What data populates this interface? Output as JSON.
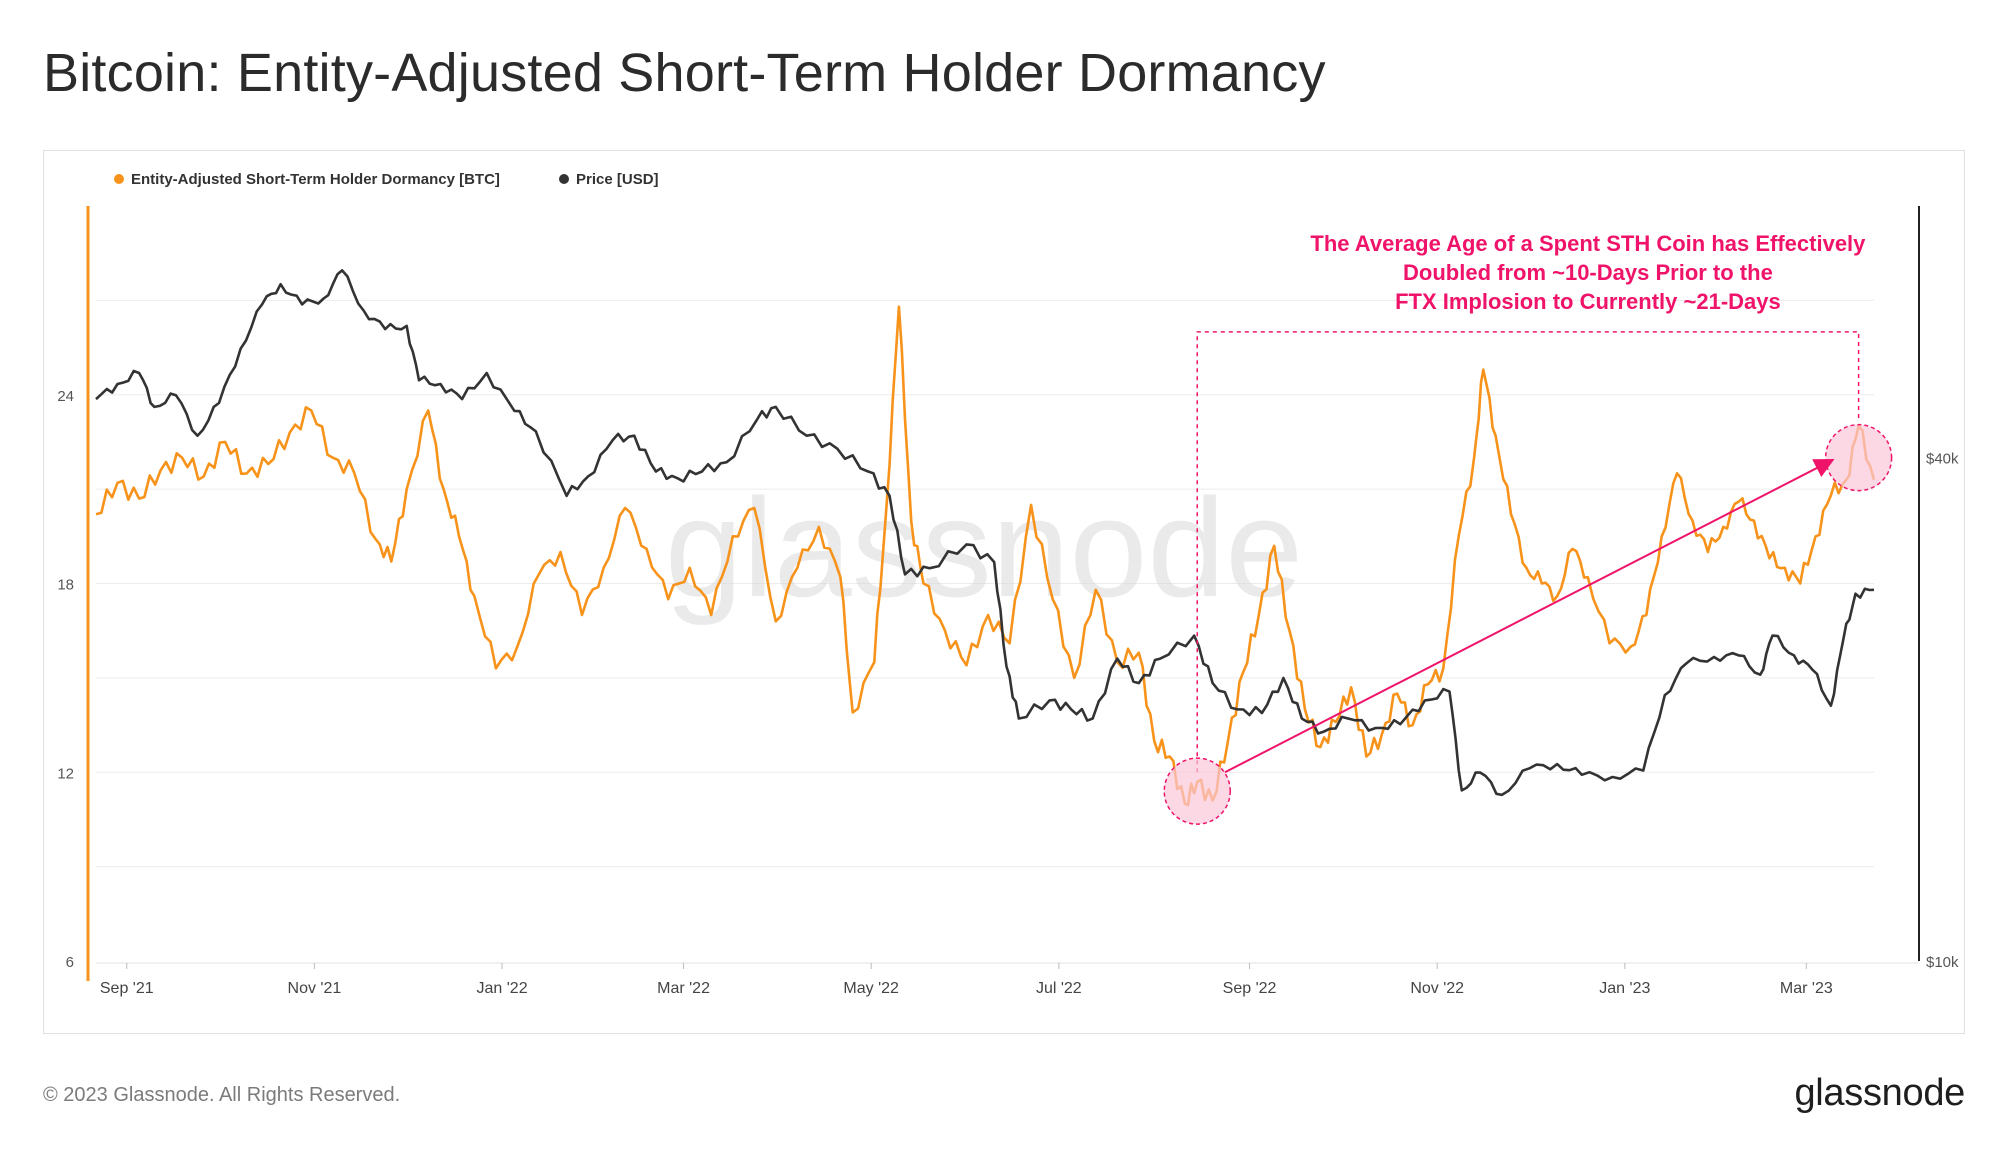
{
  "title": "Bitcoin: Entity-Adjusted Short-Term Holder Dormancy",
  "footer": {
    "copyright": "© 2023 Glassnode. All Rights Reserved.",
    "logo": "glassnode"
  },
  "watermark": "glassnode",
  "colors": {
    "dormancy": "#f7931a",
    "price": "#333333",
    "annotation": "#f0136a",
    "highlight_fill": "#fbc6d8",
    "grid": "#ececec"
  },
  "chart_data": {
    "type": "line",
    "title": "Bitcoin: Entity-Adjusted Short-Term Holder Dormancy",
    "grid": true,
    "legend_position": "top-left",
    "x_range": [
      "2021-08-22",
      "2023-03-23"
    ],
    "x_ticks": [
      {
        "date": "2021-09-01",
        "label": "Sep '21"
      },
      {
        "date": "2021-11-01",
        "label": "Nov '21"
      },
      {
        "date": "2022-01-01",
        "label": "Jan '22"
      },
      {
        "date": "2022-03-01",
        "label": "Mar '22"
      },
      {
        "date": "2022-05-01",
        "label": "May '22"
      },
      {
        "date": "2022-07-01",
        "label": "Jul '22"
      },
      {
        "date": "2022-09-01",
        "label": "Sep '22"
      },
      {
        "date": "2022-11-01",
        "label": "Nov '22"
      },
      {
        "date": "2023-01-01",
        "label": "Jan '23"
      },
      {
        "date": "2023-03-01",
        "label": "Mar '23"
      }
    ],
    "y_left": {
      "range": [
        6,
        30
      ],
      "ticks": [
        {
          "value": 6,
          "label": "6"
        },
        {
          "value": 12,
          "label": "12"
        },
        {
          "value": 18,
          "label": "18"
        },
        {
          "value": 24,
          "label": "24"
        }
      ]
    },
    "y_right": {
      "scale": "log",
      "range": [
        10000,
        80000
      ],
      "ticks": [
        {
          "value": 10000,
          "label": "$10k"
        },
        {
          "value": 40000,
          "label": "$40k"
        }
      ]
    },
    "series": [
      {
        "name": "Entity-Adjusted Short-Term Holder Dormancy [BTC]",
        "axis": "left",
        "color": "#f7931a",
        "points": [
          [
            "2021-08-22",
            20.2
          ],
          [
            "2021-08-29",
            21.2
          ],
          [
            "2021-09-05",
            20.7
          ],
          [
            "2021-09-12",
            21.6
          ],
          [
            "2021-09-19",
            22.0
          ],
          [
            "2021-09-26",
            21.4
          ],
          [
            "2021-10-03",
            22.5
          ],
          [
            "2021-10-10",
            21.5
          ],
          [
            "2021-10-17",
            21.8
          ],
          [
            "2021-10-24",
            22.8
          ],
          [
            "2021-10-31",
            23.5
          ],
          [
            "2021-11-07",
            22.0
          ],
          [
            "2021-11-14",
            21.5
          ],
          [
            "2021-11-21",
            19.4
          ],
          [
            "2021-11-26",
            18.7
          ],
          [
            "2021-12-01",
            21.0
          ],
          [
            "2021-12-08",
            23.5
          ],
          [
            "2021-12-13",
            21.0
          ],
          [
            "2021-12-18",
            19.5
          ],
          [
            "2021-12-23",
            17.6
          ],
          [
            "2021-12-30",
            15.3
          ],
          [
            "2022-01-06",
            16.0
          ],
          [
            "2022-01-13",
            18.3
          ],
          [
            "2022-01-20",
            19.0
          ],
          [
            "2022-01-27",
            17.0
          ],
          [
            "2022-02-03",
            18.5
          ],
          [
            "2022-02-10",
            20.4
          ],
          [
            "2022-02-17",
            19.1
          ],
          [
            "2022-02-24",
            17.5
          ],
          [
            "2022-03-03",
            18.5
          ],
          [
            "2022-03-10",
            17.0
          ],
          [
            "2022-03-17",
            19.5
          ],
          [
            "2022-03-24",
            20.4
          ],
          [
            "2022-03-31",
            16.8
          ],
          [
            "2022-04-07",
            18.5
          ],
          [
            "2022-04-14",
            19.8
          ],
          [
            "2022-04-21",
            18.2
          ],
          [
            "2022-04-25",
            13.9
          ],
          [
            "2022-05-02",
            15.5
          ],
          [
            "2022-05-06",
            20.5
          ],
          [
            "2022-05-10",
            26.8
          ],
          [
            "2022-05-14",
            20.0
          ],
          [
            "2022-05-18",
            18.0
          ],
          [
            "2022-05-25",
            16.5
          ],
          [
            "2022-06-01",
            15.4
          ],
          [
            "2022-06-08",
            17.0
          ],
          [
            "2022-06-15",
            16.1
          ],
          [
            "2022-06-22",
            20.5
          ],
          [
            "2022-06-29",
            17.5
          ],
          [
            "2022-07-06",
            15.0
          ],
          [
            "2022-07-13",
            17.8
          ],
          [
            "2022-07-20",
            15.5
          ],
          [
            "2022-07-27",
            15.8
          ],
          [
            "2022-08-01",
            13.0
          ],
          [
            "2022-08-06",
            12.5
          ],
          [
            "2022-08-11",
            11.0
          ],
          [
            "2022-08-15",
            11.7
          ],
          [
            "2022-08-20",
            11.1
          ],
          [
            "2022-08-25",
            13.0
          ],
          [
            "2022-08-30",
            15.2
          ],
          [
            "2022-09-04",
            17.0
          ],
          [
            "2022-09-09",
            19.2
          ],
          [
            "2022-09-14",
            16.5
          ],
          [
            "2022-09-19",
            14.0
          ],
          [
            "2022-09-24",
            12.8
          ],
          [
            "2022-09-29",
            13.6
          ],
          [
            "2022-10-04",
            14.7
          ],
          [
            "2022-10-09",
            12.5
          ],
          [
            "2022-10-14",
            13.2
          ],
          [
            "2022-10-19",
            14.5
          ],
          [
            "2022-10-24",
            13.5
          ],
          [
            "2022-10-29",
            14.8
          ],
          [
            "2022-11-03",
            15.3
          ],
          [
            "2022-11-08",
            19.5
          ],
          [
            "2022-11-13",
            22.0
          ],
          [
            "2022-11-16",
            24.8
          ],
          [
            "2022-11-20",
            22.7
          ],
          [
            "2022-11-25",
            20.2
          ],
          [
            "2022-11-30",
            18.5
          ],
          [
            "2022-12-05",
            18.0
          ],
          [
            "2022-12-10",
            17.6
          ],
          [
            "2022-12-15",
            19.1
          ],
          [
            "2022-12-20",
            18.2
          ],
          [
            "2022-12-27",
            16.1
          ],
          [
            "2023-01-03",
            16.0
          ],
          [
            "2023-01-08",
            17.0
          ],
          [
            "2023-01-13",
            19.5
          ],
          [
            "2023-01-18",
            21.5
          ],
          [
            "2023-01-23",
            20.0
          ],
          [
            "2023-01-28",
            19.0
          ],
          [
            "2023-02-02",
            19.8
          ],
          [
            "2023-02-07",
            20.6
          ],
          [
            "2023-02-12",
            20.0
          ],
          [
            "2023-02-17",
            18.8
          ],
          [
            "2023-02-22",
            18.5
          ],
          [
            "2023-02-27",
            18.0
          ],
          [
            "2023-03-04",
            19.5
          ],
          [
            "2023-03-09",
            20.8
          ],
          [
            "2023-03-14",
            21.3
          ],
          [
            "2023-03-18",
            23.0
          ],
          [
            "2023-03-23",
            21.3
          ]
        ]
      },
      {
        "name": "Price [USD]",
        "axis": "right",
        "color": "#333333",
        "points": [
          [
            "2021-08-22",
            47000
          ],
          [
            "2021-08-29",
            49000
          ],
          [
            "2021-09-05",
            50500
          ],
          [
            "2021-09-10",
            46000
          ],
          [
            "2021-09-17",
            47500
          ],
          [
            "2021-09-24",
            42500
          ],
          [
            "2021-10-01",
            46500
          ],
          [
            "2021-10-08",
            54000
          ],
          [
            "2021-10-15",
            61000
          ],
          [
            "2021-10-21",
            64500
          ],
          [
            "2021-10-28",
            61000
          ],
          [
            "2021-11-04",
            62000
          ],
          [
            "2021-11-10",
            67000
          ],
          [
            "2021-11-17",
            60000
          ],
          [
            "2021-11-24",
            57000
          ],
          [
            "2021-12-01",
            57500
          ],
          [
            "2021-12-05",
            49500
          ],
          [
            "2021-12-12",
            49000
          ],
          [
            "2021-12-19",
            47000
          ],
          [
            "2021-12-27",
            50500
          ],
          [
            "2022-01-05",
            45500
          ],
          [
            "2022-01-12",
            43000
          ],
          [
            "2022-01-22",
            36000
          ],
          [
            "2022-01-29",
            38000
          ],
          [
            "2022-02-06",
            42000
          ],
          [
            "2022-02-13",
            42500
          ],
          [
            "2022-02-20",
            38500
          ],
          [
            "2022-02-27",
            37800
          ],
          [
            "2022-03-07",
            38500
          ],
          [
            "2022-03-15",
            39500
          ],
          [
            "2022-03-25",
            44500
          ],
          [
            "2022-03-31",
            46000
          ],
          [
            "2022-04-10",
            42500
          ],
          [
            "2022-04-20",
            41000
          ],
          [
            "2022-04-30",
            38500
          ],
          [
            "2022-05-07",
            36000
          ],
          [
            "2022-05-12",
            29000
          ],
          [
            "2022-05-20",
            29500
          ],
          [
            "2022-06-01",
            31500
          ],
          [
            "2022-06-10",
            30000
          ],
          [
            "2022-06-14",
            22500
          ],
          [
            "2022-06-18",
            19500
          ],
          [
            "2022-06-28",
            20500
          ],
          [
            "2022-07-05",
            20000
          ],
          [
            "2022-07-12",
            19500
          ],
          [
            "2022-07-20",
            23000
          ],
          [
            "2022-07-27",
            21500
          ],
          [
            "2022-08-03",
            23000
          ],
          [
            "2022-08-14",
            24500
          ],
          [
            "2022-08-20",
            21500
          ],
          [
            "2022-08-28",
            20000
          ],
          [
            "2022-09-05",
            19800
          ],
          [
            "2022-09-12",
            21800
          ],
          [
            "2022-09-18",
            19500
          ],
          [
            "2022-09-25",
            18800
          ],
          [
            "2022-10-03",
            19500
          ],
          [
            "2022-10-12",
            19000
          ],
          [
            "2022-10-20",
            19200
          ],
          [
            "2022-10-28",
            20500
          ],
          [
            "2022-11-05",
            21000
          ],
          [
            "2022-11-09",
            16000
          ],
          [
            "2022-11-15",
            16800
          ],
          [
            "2022-11-22",
            15800
          ],
          [
            "2022-12-01",
            17000
          ],
          [
            "2022-12-10",
            17200
          ],
          [
            "2022-12-18",
            16700
          ],
          [
            "2022-12-28",
            16600
          ],
          [
            "2023-01-07",
            16900
          ],
          [
            "2023-01-14",
            20800
          ],
          [
            "2023-01-21",
            22700
          ],
          [
            "2023-01-30",
            23100
          ],
          [
            "2023-02-07",
            23200
          ],
          [
            "2023-02-14",
            22000
          ],
          [
            "2023-02-18",
            24500
          ],
          [
            "2023-02-25",
            23200
          ],
          [
            "2023-03-03",
            22300
          ],
          [
            "2023-03-09",
            20200
          ],
          [
            "2023-03-13",
            24200
          ],
          [
            "2023-03-17",
            27500
          ],
          [
            "2023-03-23",
            27800
          ]
        ]
      }
    ],
    "annotations": [
      {
        "type": "text",
        "lines": [
          "The Average Age of a Spent STH Coin has Effectively",
          "Doubled from ~10-Days Prior to the",
          "FTX Implosion to Currently ~21-Days"
        ]
      },
      {
        "type": "circle",
        "date": "2022-08-15",
        "value": 11.4
      },
      {
        "type": "circle",
        "date": "2023-03-18",
        "value": 22.0
      },
      {
        "type": "arrow",
        "from": [
          "2022-08-24",
          12.0
        ],
        "to": [
          "2023-03-09",
          21.9
        ]
      },
      {
        "type": "dashed-box",
        "from": [
          "2022-08-15",
          12.0
        ],
        "to": [
          "2023-03-18",
          26.0
        ]
      }
    ]
  }
}
